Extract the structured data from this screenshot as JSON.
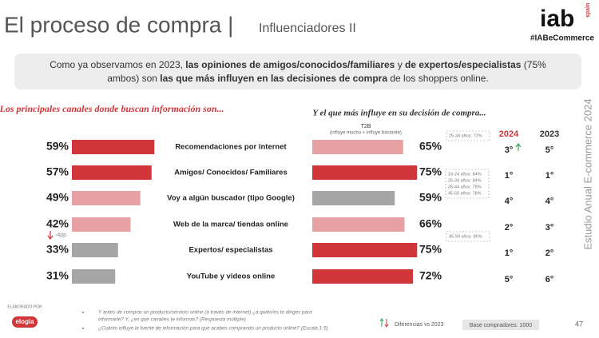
{
  "header": {
    "title": "El proceso de compra |",
    "subtitle": "Influenciadores II",
    "logo": "iab",
    "logo_sub": "spain",
    "hashtag": "#IABeCommerce"
  },
  "summary": [
    [
      {
        "text": "Como ya observamos en 2023, ",
        "bold": false
      },
      {
        "text": "las opiniones de amigos/conocidos/familiares",
        "bold": true
      },
      {
        "text": " y ",
        "bold": false
      },
      {
        "text": "de expertos/especialistas",
        "bold": true
      },
      {
        "text": " (75%",
        "bold": false
      }
    ],
    [
      {
        "text": "ambos) son ",
        "bold": false
      },
      {
        "text": "las que más influyen en las decisiones de compra",
        "bold": true
      },
      {
        "text": " de los shoppers online.",
        "bold": false
      }
    ]
  ],
  "chart_data": [
    {
      "type": "bar",
      "orientation": "horizontal",
      "title": "Los principales canales donde buscan información son...",
      "categories": [
        "Recomendaciones por internet",
        "Amigos/ Conocidos/ Familiares",
        "Voy a algún buscador (tipo Google)",
        "Web de la marca/ tiendas online",
        "Expertos/ especialistas",
        "YouTube y videos online"
      ],
      "values": [
        59,
        57,
        49,
        42,
        33,
        31
      ],
      "value_labels": [
        "59%",
        "57%",
        "49%",
        "42%",
        "33%",
        "31%"
      ],
      "colors": [
        "#d0363a",
        "#d0363a",
        "#e7a1a3",
        "#e7a1a3",
        "#a6a6a6",
        "#a6a6a6"
      ],
      "annotation": "-4pp"
    },
    {
      "type": "bar",
      "orientation": "horizontal",
      "title": "Y el que más influye en su decisión de compra...",
      "subtitle": "T2B",
      "note": "(influye mucho + influye bastante)",
      "values": [
        65,
        75,
        59,
        66,
        75,
        72
      ],
      "value_labels": [
        "65%",
        "75%",
        "59%",
        "66%",
        "75%",
        "72%"
      ],
      "colors": [
        "#e7a1a3",
        "#d0363a",
        "#a6a6a6",
        "#e7a1a3",
        "#d0363a",
        "#d0363a"
      ],
      "callouts": [
        [
          "25-34 años: 72%"
        ],
        [
          "16-24 años: 84%",
          "25-34 años: 84%",
          "35-44 años: 78%",
          "45-50 años: 78%"
        ],
        [
          "45-59 años: 86%"
        ]
      ]
    }
  ],
  "ranking": {
    "columns": [
      {
        "name": "2024",
        "color": "#d0363a",
        "values": [
          "3°",
          "1°",
          "4°",
          "2°",
          "1°",
          "5°"
        ]
      },
      {
        "name": "2023",
        "color": "#333333",
        "values": [
          "5°",
          "1°",
          "4°",
          "3°",
          "2°",
          "6°"
        ]
      }
    ]
  },
  "side_text": "Estudio Anual E-commerce  2024",
  "footer": {
    "credit": "ELABORADO POR",
    "brand": "elogia",
    "notes": [
      "Y antes de comprar un producto/servicio online (a través de internet) ¿a quién/es te diriges para",
      "informarte? Y, ¿en qué canal/es te informas? (Respuesta múltiple)",
      "¿Cuánto influye la fuente de información para que acabes comprando un producto online? (Escala 1-5)"
    ],
    "legend": "Diferencias vs 2023",
    "base": "Base compradores: 1000",
    "page": "47"
  }
}
